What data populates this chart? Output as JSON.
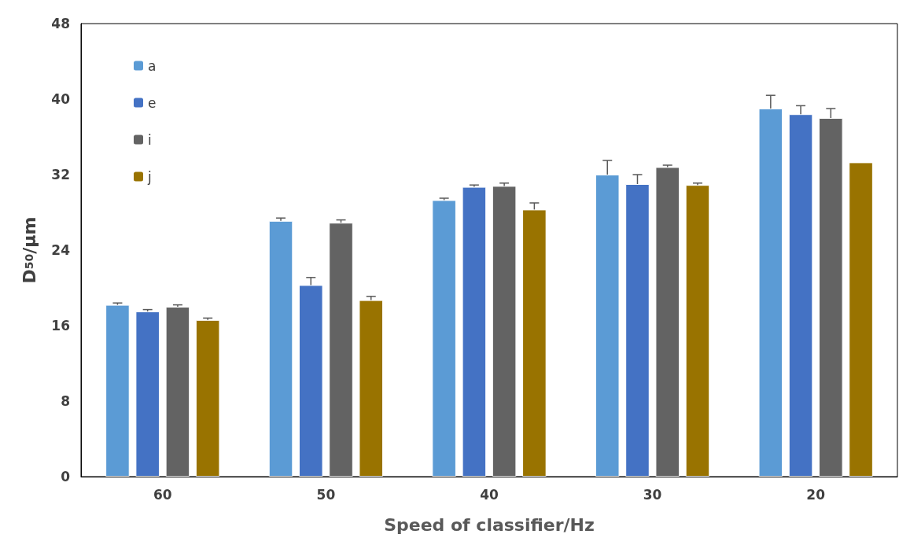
{
  "chart_data": {
    "type": "bar",
    "xlabel": "Speed of classifier/Hz",
    "ylabel": "D$_{50}$/μm",
    "categories": [
      "60",
      "50",
      "40",
      "30",
      "20"
    ],
    "series": [
      {
        "name": "a",
        "color": "#5b9bd5",
        "values": [
          18.2,
          27.1,
          29.3,
          32.0,
          39.0
        ],
        "errors": [
          0.2,
          0.3,
          0.2,
          1.5,
          1.4
        ]
      },
      {
        "name": "e",
        "color": "#4472c4",
        "values": [
          17.5,
          20.3,
          30.7,
          31.0,
          38.4
        ],
        "errors": [
          0.2,
          0.8,
          0.2,
          1.0,
          0.9
        ]
      },
      {
        "name": "i",
        "color": "#636363",
        "values": [
          18.0,
          26.9,
          30.8,
          32.8,
          38.0
        ],
        "errors": [
          0.2,
          0.3,
          0.3,
          0.2,
          1.0
        ]
      },
      {
        "name": "j",
        "color": "#997300",
        "values": [
          16.6,
          18.7,
          28.3,
          30.9,
          33.3
        ],
        "errors": [
          0.2,
          0.4,
          0.7,
          0.2,
          null
        ]
      }
    ],
    "ylim": [
      0,
      48
    ],
    "yticks": [
      0,
      8,
      16,
      24,
      32,
      40,
      48
    ],
    "grid": false,
    "legend": "top left"
  }
}
